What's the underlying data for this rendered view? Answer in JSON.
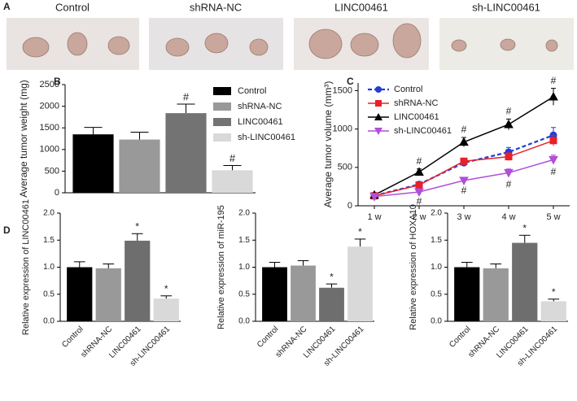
{
  "panels": [
    "A",
    "B",
    "C",
    "D"
  ],
  "photo_labels": [
    "Control",
    "shRNA-NC",
    "LINC00461",
    "sh-LINC00461"
  ],
  "chart_data": [
    {
      "type": "bar",
      "ylabel": "Average tumor weight (mg)",
      "categories": [
        "Control",
        "shRNA-NC",
        "LINC00461",
        "sh-LINC00461"
      ],
      "values": [
        1350,
        1230,
        1840,
        520
      ],
      "errors": [
        160,
        170,
        210,
        110
      ],
      "colors": [
        "#000000",
        "#999999",
        "#737373",
        "#d9d9d9"
      ],
      "annotations": [
        null,
        null,
        "#",
        "#"
      ],
      "ylim": [
        0,
        2500
      ],
      "yticks": [
        0,
        500,
        1000,
        1500,
        2000,
        2500
      ],
      "legend": "upper right",
      "category_labels": false
    },
    {
      "type": "line",
      "ylabel": "Average tumor volume (mm³)",
      "categories": [
        "1 w",
        "2 w",
        "3 w",
        "4 w",
        "5 w"
      ],
      "ylim": [
        0,
        1600
      ],
      "yticks": [
        0,
        500,
        1000,
        1500
      ],
      "legend": "upper left",
      "series": [
        {
          "name": "Control",
          "color": "#1f3fd6",
          "marker": "circle",
          "dash": true,
          "values": [
            130,
            280,
            560,
            700,
            920
          ],
          "errors": [
            20,
            30,
            40,
            60,
            100
          ],
          "annotations": [
            null,
            null,
            null,
            null,
            null
          ],
          "annotation_side": "above"
        },
        {
          "name": "shRNA-NC",
          "color": "#e8202a",
          "marker": "square",
          "dash": false,
          "values": [
            130,
            270,
            580,
            640,
            850
          ],
          "errors": [
            20,
            30,
            40,
            50,
            70
          ],
          "annotations": [
            null,
            null,
            null,
            null,
            null
          ],
          "annotation_side": "above"
        },
        {
          "name": "LINC00461",
          "color": "#000000",
          "marker": "triangle",
          "dash": false,
          "values": [
            140,
            440,
            830,
            1060,
            1420
          ],
          "errors": [
            20,
            40,
            60,
            70,
            110
          ],
          "annotations": [
            null,
            "#",
            "#",
            "#",
            "#"
          ],
          "annotation_side": "above"
        },
        {
          "name": "sh-LINC00461",
          "color": "#b04fd8",
          "marker": "triangle-down",
          "dash": false,
          "values": [
            120,
            180,
            330,
            430,
            600
          ],
          "errors": [
            20,
            25,
            30,
            50,
            60
          ],
          "annotations": [
            null,
            "#",
            "#",
            "#",
            "#"
          ],
          "annotation_side": "below"
        }
      ]
    },
    {
      "type": "bar",
      "ylabel": "Relative expression of LINC00461",
      "categories": [
        "Control",
        "shRNA-NC",
        "LINC00461",
        "sh-LINC00461"
      ],
      "values": [
        1.0,
        0.98,
        1.49,
        0.42
      ],
      "errors": [
        0.1,
        0.08,
        0.13,
        0.05
      ],
      "colors": [
        "#000000",
        "#999999",
        "#6e6e6e",
        "#d9d9d9"
      ],
      "annotations": [
        null,
        null,
        "*",
        "*"
      ],
      "ylim": [
        0,
        2.0
      ],
      "yticks": [
        {
          "value": 0,
          "label": "0.0"
        },
        0.5,
        {
          "value": 1,
          "label": "1.0"
        },
        1.5,
        {
          "value": 2,
          "label": "2.0"
        }
      ],
      "category_labels": true
    },
    {
      "type": "bar",
      "ylabel": "Relative expression of miR-195",
      "categories": [
        "Control",
        "shRNA-NC",
        "LINC00461",
        "sh-LINC00461"
      ],
      "values": [
        1.0,
        1.03,
        0.62,
        1.38
      ],
      "errors": [
        0.09,
        0.09,
        0.07,
        0.14
      ],
      "colors": [
        "#000000",
        "#999999",
        "#6e6e6e",
        "#d9d9d9"
      ],
      "annotations": [
        null,
        null,
        "*",
        "*"
      ],
      "ylim": [
        0,
        2.0
      ],
      "yticks": [
        {
          "value": 0,
          "label": "0.0"
        },
        0.5,
        {
          "value": 1,
          "label": "1.0"
        },
        1.5,
        {
          "value": 2,
          "label": "2.0"
        }
      ],
      "category_labels": true
    },
    {
      "type": "bar",
      "ylabel": "Relative expression of HOXA10",
      "categories": [
        "Control",
        "shRNA-NC",
        "LINC00461",
        "sh-LINC00461"
      ],
      "values": [
        1.0,
        0.98,
        1.45,
        0.37
      ],
      "errors": [
        0.09,
        0.08,
        0.14,
        0.04
      ],
      "colors": [
        "#000000",
        "#999999",
        "#6e6e6e",
        "#d9d9d9"
      ],
      "annotations": [
        null,
        null,
        "*",
        "*"
      ],
      "ylim": [
        0,
        2.0
      ],
      "yticks": [
        {
          "value": 0,
          "label": "0.0"
        },
        0.5,
        {
          "value": 1,
          "label": "1.0"
        },
        1.5,
        {
          "value": 2,
          "label": "2.0"
        }
      ],
      "category_labels": true
    }
  ]
}
